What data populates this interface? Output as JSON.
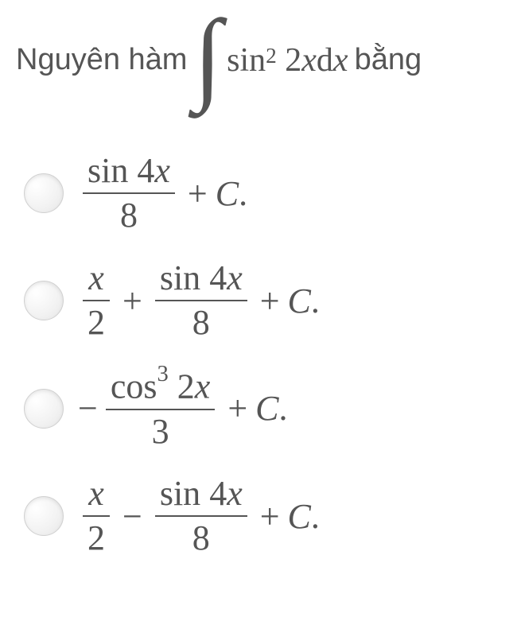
{
  "question": {
    "prefix": "Nguyên hàm",
    "suffix": "bằng",
    "integrand": {
      "func": "sin",
      "exponent": "2",
      "arg_coef": "2",
      "arg_var": "x",
      "diff_d": "d",
      "diff_var": "x"
    }
  },
  "options": [
    {
      "terms": [
        {
          "type": "frac",
          "num": "sin 4x",
          "den": "8",
          "num_italic_var": true
        },
        {
          "type": "op",
          "value": "+"
        },
        {
          "type": "const",
          "value": "C."
        }
      ]
    },
    {
      "terms": [
        {
          "type": "frac",
          "num": "x",
          "den": "2",
          "num_italic_var": true
        },
        {
          "type": "op",
          "value": "+"
        },
        {
          "type": "frac",
          "num": "sin 4x",
          "den": "8",
          "num_italic_var": true
        },
        {
          "type": "op",
          "value": "+"
        },
        {
          "type": "const",
          "value": "C."
        }
      ]
    },
    {
      "terms": [
        {
          "type": "neg",
          "value": "−"
        },
        {
          "type": "frac",
          "num_func": "cos",
          "num_exp": "3",
          "num_arg": "2x",
          "den": "3"
        },
        {
          "type": "op",
          "value": "+"
        },
        {
          "type": "const",
          "value": "C."
        }
      ]
    },
    {
      "terms": [
        {
          "type": "frac",
          "num": "x",
          "den": "2",
          "num_italic_var": true
        },
        {
          "type": "op",
          "value": "−"
        },
        {
          "type": "frac",
          "num": "sin 4x",
          "den": "8",
          "num_italic_var": true
        },
        {
          "type": "op",
          "value": "+"
        },
        {
          "type": "const",
          "value": "C."
        }
      ]
    }
  ],
  "style": {
    "text_color": "#555555",
    "background": "#ffffff",
    "question_fontsize": 38,
    "math_fontsize": 44,
    "radio_size": 50
  }
}
